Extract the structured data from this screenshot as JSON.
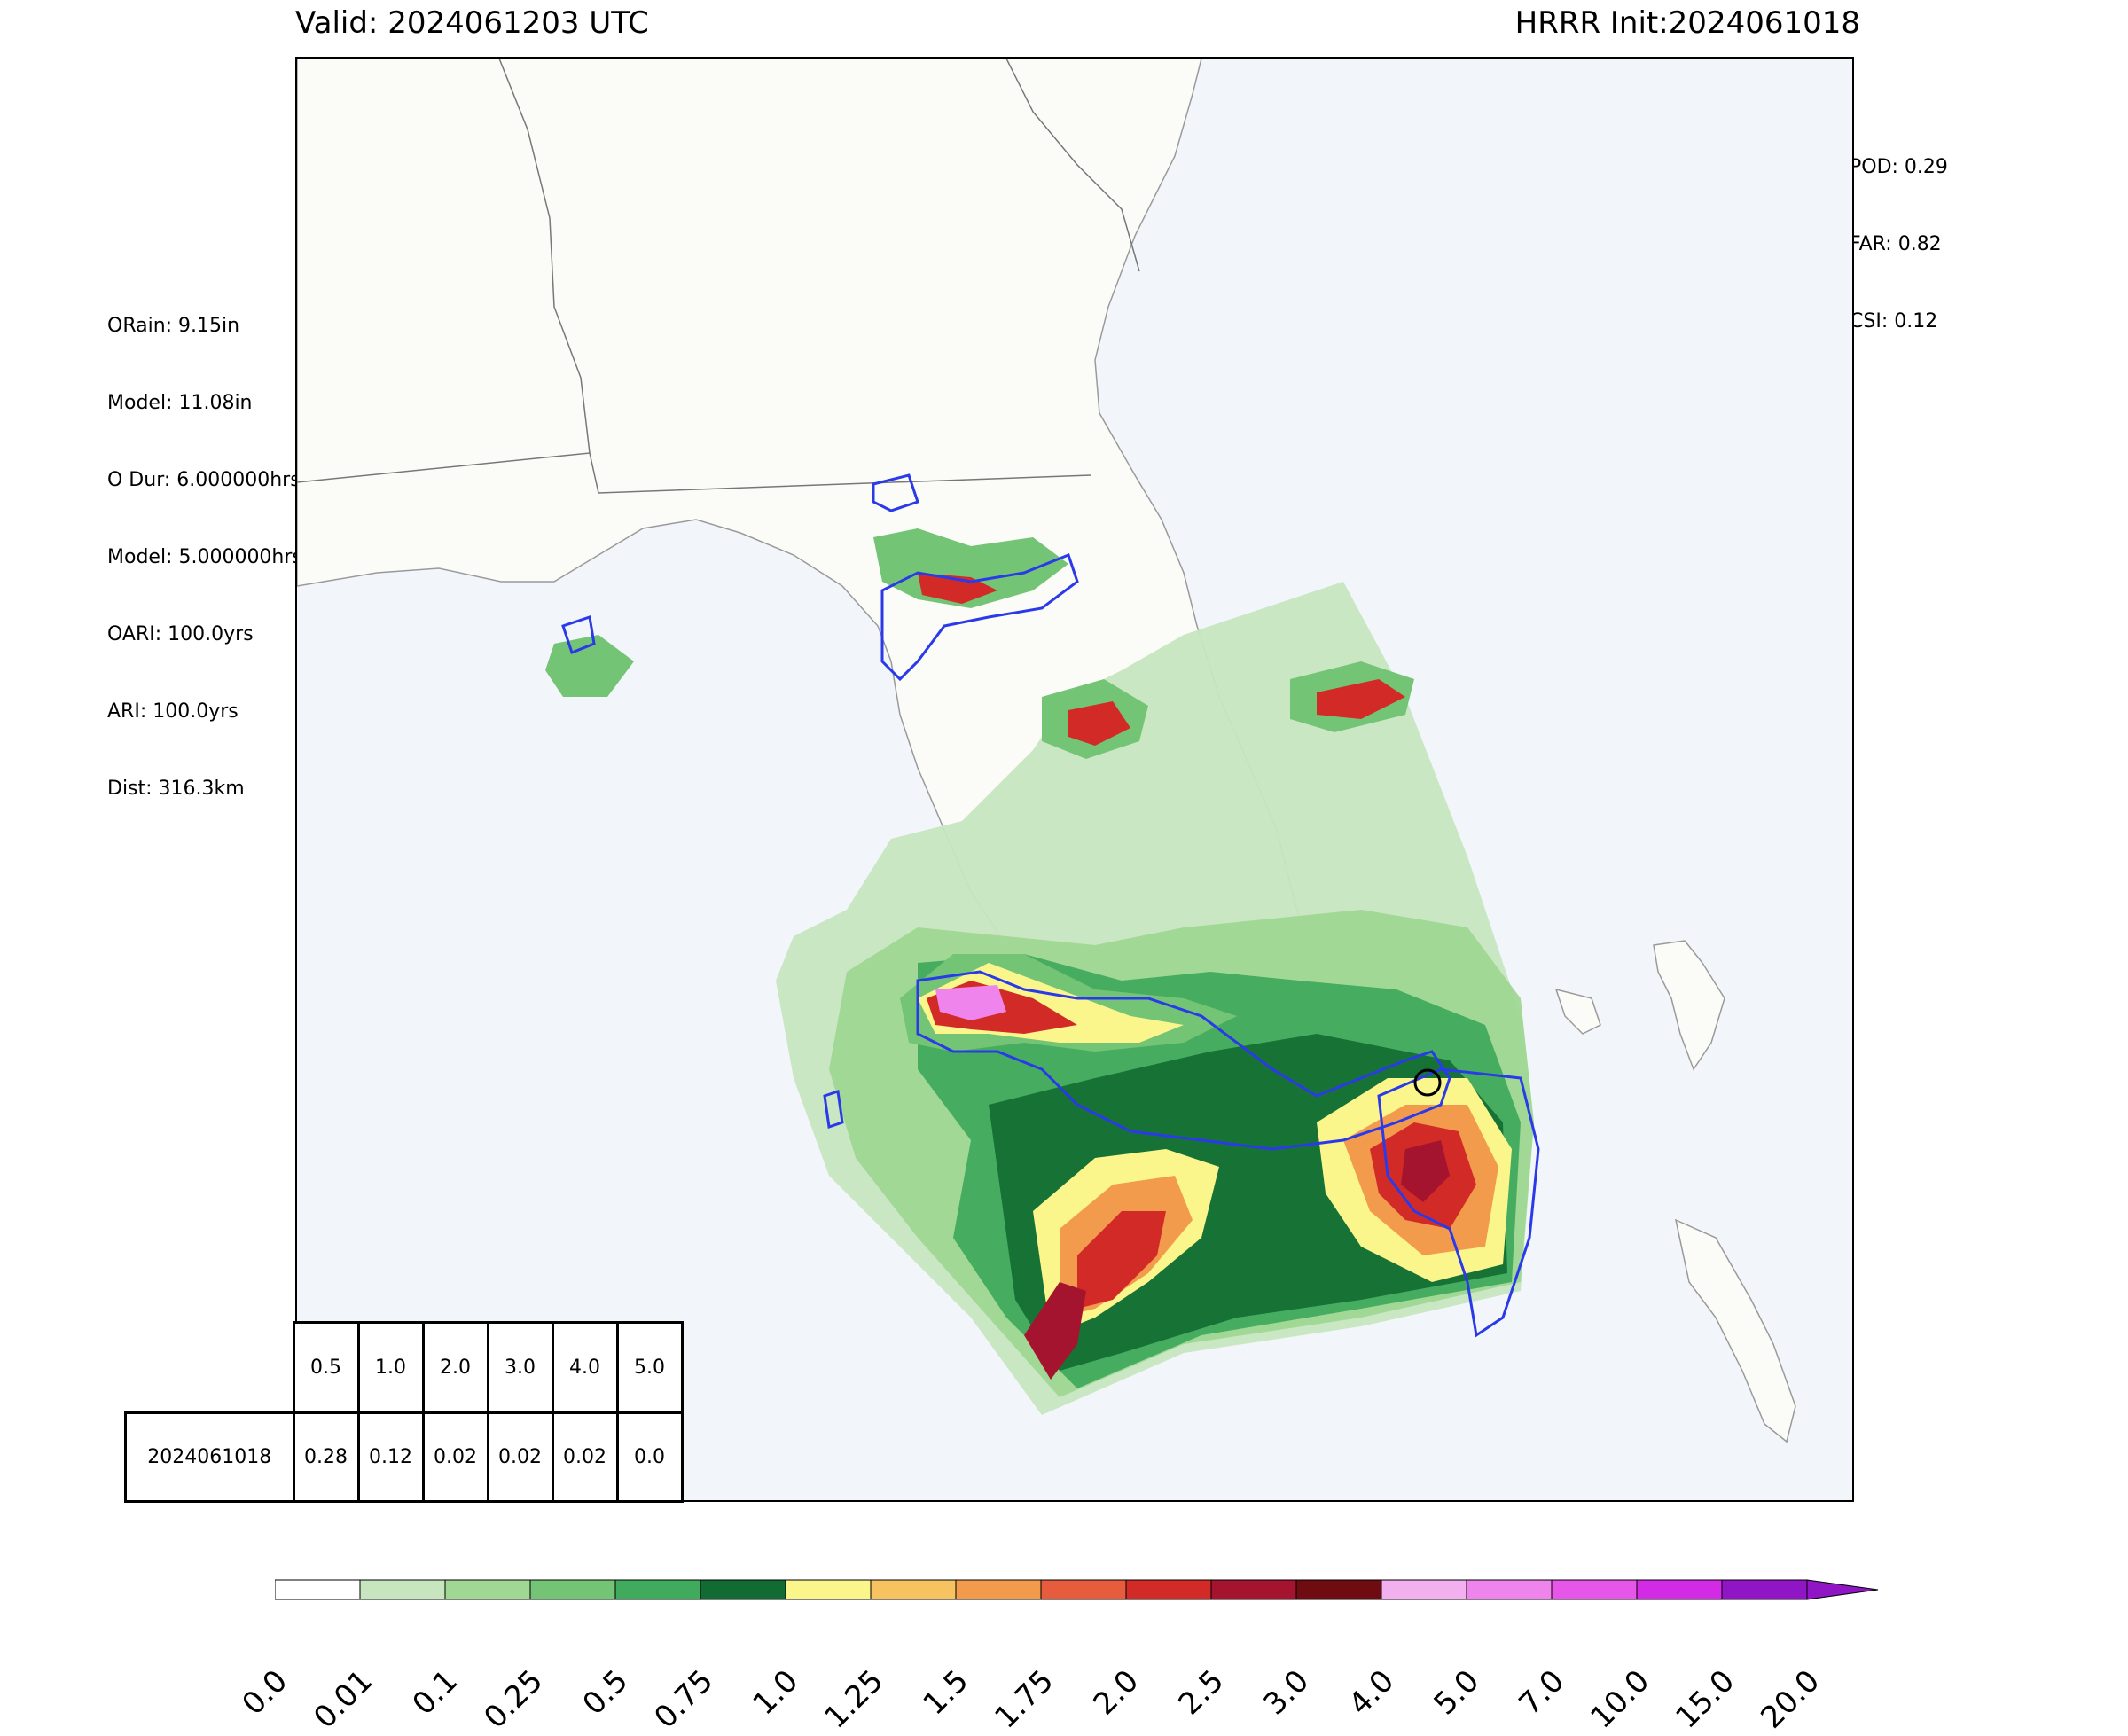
{
  "header": {
    "valid_label": "Valid: 2024061203 UTC",
    "init_label": "HRRR Init:2024061018"
  },
  "stats_left": [
    "ORain: 9.15in",
    "Model: 11.08in",
    "O Dur: 6.000000hrs",
    "Model: 5.000000hrs",
    "OARI: 100.0yrs",
    "ARI: 100.0yrs",
    "Dist: 316.3km"
  ],
  "stats_right": [
    "POD: 0.29",
    "FAR: 0.82",
    "CSI: 0.12"
  ],
  "threshold_table": {
    "thresholds": [
      "0.5",
      "1.0",
      "2.0",
      "3.0",
      "4.0",
      "5.0"
    ],
    "rows": [
      {
        "label": "2024061018",
        "values": [
          "0.28",
          "0.12",
          "0.02",
          "0.02",
          "0.02",
          "0.0"
        ]
      }
    ]
  },
  "colorbar": {
    "units": "in",
    "levels": [
      "0.0",
      "0.01",
      "0.1",
      "0.25",
      "0.5",
      "0.75",
      "1.0",
      "1.25",
      "1.5",
      "1.75",
      "2.0",
      "2.5",
      "3.0",
      "4.0",
      "5.0",
      "7.0",
      "10.0",
      "15.0",
      "20.0"
    ],
    "colors": [
      "#ffffff",
      "#c7e6c0",
      "#9fd793",
      "#74c476",
      "#41ab5d",
      "#126b32",
      "#fbf68c",
      "#f7c260",
      "#f39b4c",
      "#e65c3c",
      "#d22b27",
      "#a5142e",
      "#6e0c12",
      "#f3b0ee",
      "#ee84ec",
      "#e656e8",
      "#d32ae6",
      "#9015c4"
    ],
    "extend": "max"
  },
  "map": {
    "region": "Florida",
    "land_color": "#fbfbf8",
    "water_color": "#f2f5fa",
    "contour_color": "#2b3ae8",
    "verification_marker": "open-circle"
  }
}
